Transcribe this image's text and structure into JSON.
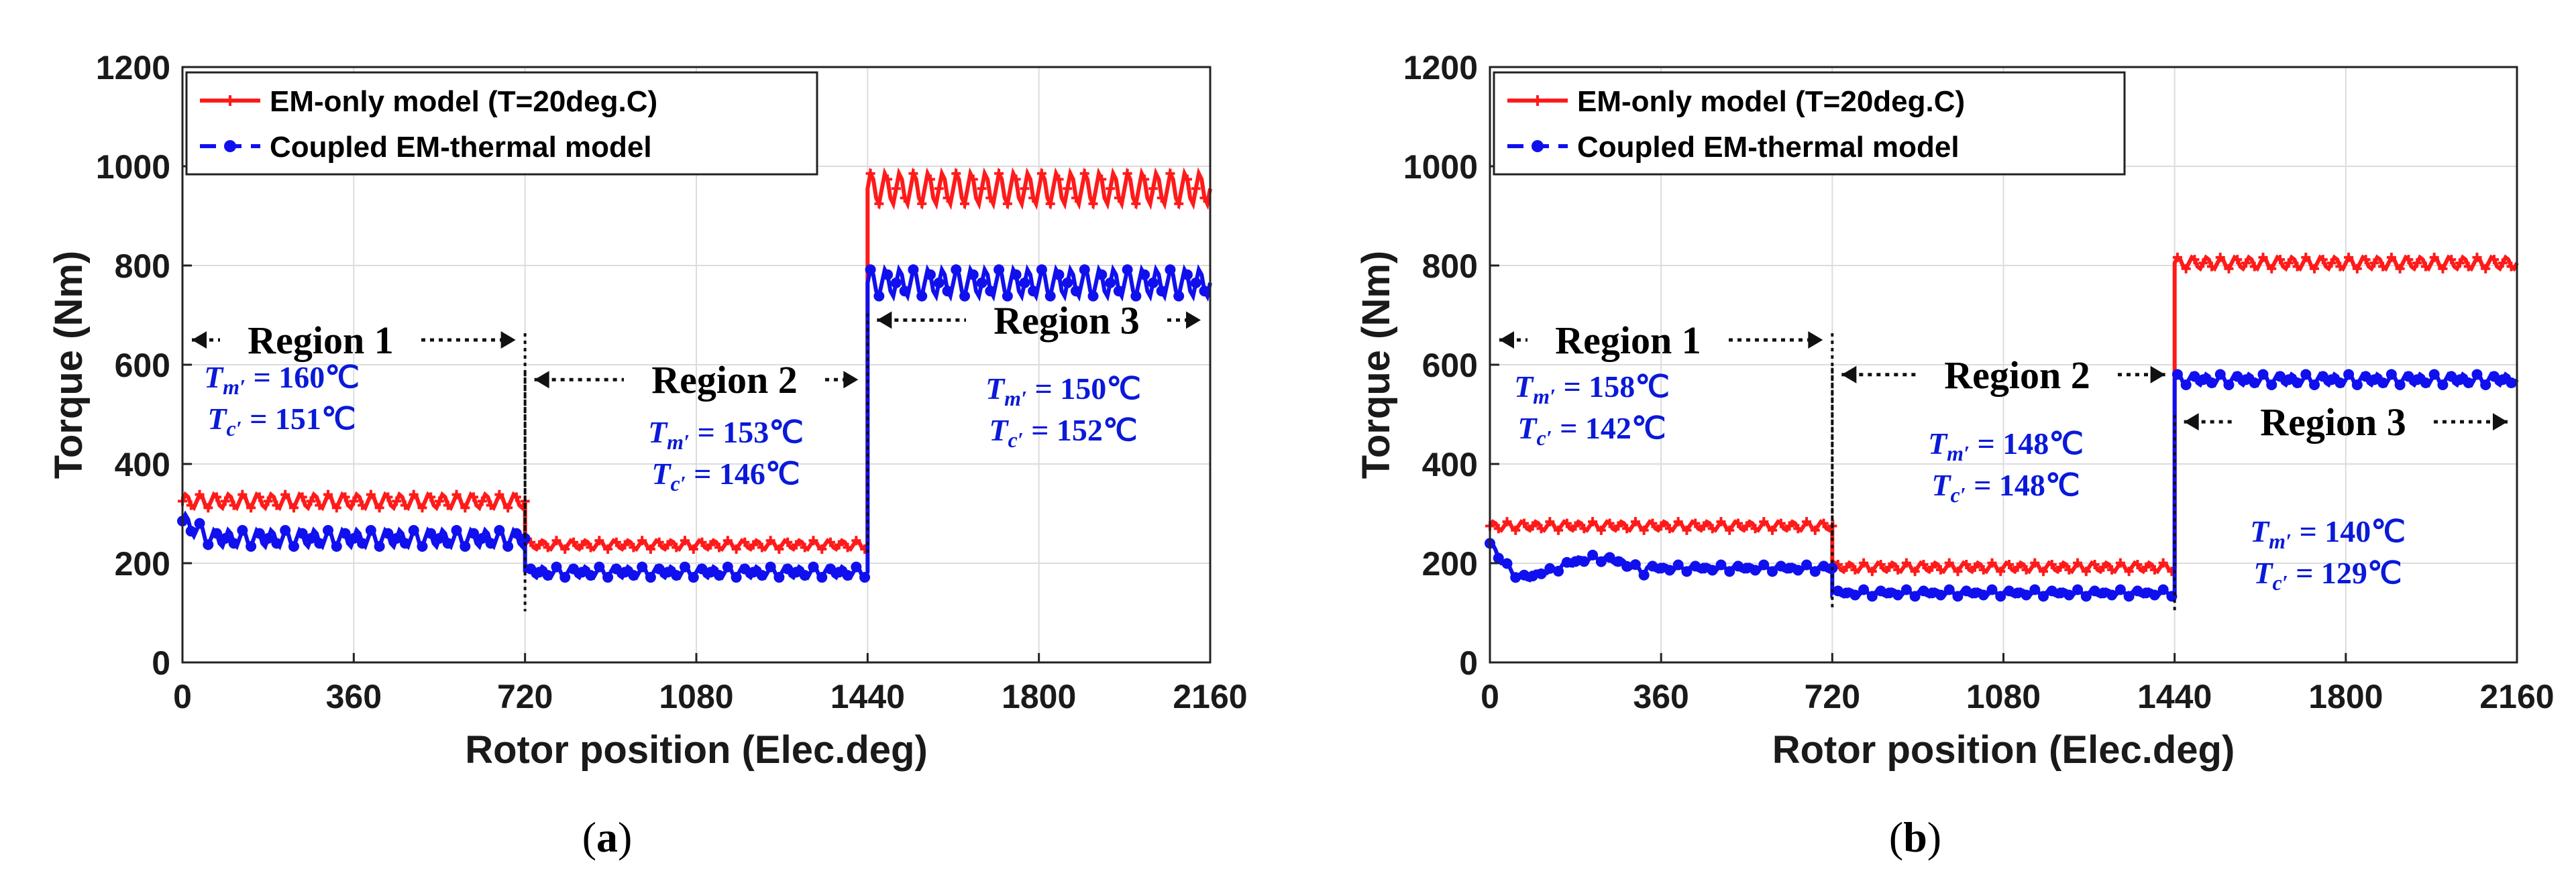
{
  "chart_data": [
    {
      "panel": "a",
      "caption_letter": "a",
      "type": "line",
      "xlabel": "Rotor position (Elec.deg)",
      "ylabel": "Torque (Nm)",
      "xlim": [
        0,
        2160
      ],
      "ylim": [
        0,
        1200
      ],
      "xticks": [
        0,
        360,
        720,
        1080,
        1440,
        1800,
        2160
      ],
      "yticks": [
        0,
        200,
        400,
        600,
        800,
        1000,
        1200
      ],
      "grid": true,
      "legend_position": "top-left",
      "series": [
        {
          "name": "EM-only model (T=20deg.C)",
          "color": "#ff1a1a",
          "marker": "plus",
          "segments": [
            [
              0,
              720,
              325
            ],
            [
              720,
              1440,
              237
            ],
            [
              1440,
              2160,
              955
            ]
          ],
          "ripple": [
            14,
            9,
            32
          ]
        },
        {
          "name": "Coupled EM-thermal model",
          "color": "#1010ee",
          "marker": "dot",
          "segments": [
            [
              0,
              720,
              250
            ],
            [
              720,
              1440,
              182
            ],
            [
              1440,
              2160,
              765
            ]
          ],
          "ripple": [
            17,
            11,
            28
          ]
        }
      ],
      "regions": [
        {
          "label": "Region 1",
          "x_start": 0,
          "x_end": 720,
          "arrow_y": 650,
          "Tm_value": "160",
          "Tc_value": "151"
        },
        {
          "label": "Region 2",
          "x_start": 720,
          "x_end": 1440,
          "arrow_y": 570,
          "Tm_value": "153",
          "Tc_value": "146"
        },
        {
          "label": "Region 3",
          "x_start": 1440,
          "x_end": 2160,
          "arrow_y": 690,
          "Tm_value": "150",
          "Tc_value": "152"
        }
      ]
    },
    {
      "panel": "b",
      "caption_letter": "b",
      "type": "line",
      "xlabel": "Rotor position (Elec.deg)",
      "ylabel": "Torque (Nm)",
      "xlim": [
        0,
        2160
      ],
      "ylim": [
        0,
        1200
      ],
      "xticks": [
        0,
        360,
        720,
        1080,
        1440,
        1800,
        2160
      ],
      "yticks": [
        0,
        200,
        400,
        600,
        800,
        1000,
        1200
      ],
      "grid": true,
      "legend_position": "top-left",
      "series": [
        {
          "name": "EM-only model (T=20deg.C)",
          "color": "#ff1a1a",
          "marker": "plus",
          "segments": [
            [
              0,
              720,
              275
            ],
            [
              720,
              1440,
              192
            ],
            [
              1440,
              2160,
              805
            ]
          ],
          "ripple": [
            9,
            9,
            12
          ]
        },
        {
          "name": "Coupled EM-thermal model",
          "color": "#1010ee",
          "marker": "dot",
          "segments": [
            [
              0,
              720,
              190
            ],
            [
              720,
              1440,
              140
            ],
            [
              1440,
              2160,
              570
            ]
          ],
          "ripple": [
            7,
            7,
            11
          ]
        }
      ],
      "regions": [
        {
          "label": "Region 1",
          "x_start": 0,
          "x_end": 720,
          "arrow_y": 650,
          "Tm_value": "158",
          "Tc_value": "142"
        },
        {
          "label": "Region 2",
          "x_start": 720,
          "x_end": 1440,
          "arrow_y": 580,
          "Tm_value": "148",
          "Tc_value": "148"
        },
        {
          "label": "Region 3",
          "x_start": 1440,
          "x_end": 2160,
          "arrow_y": 485,
          "Tm_value": "140",
          "Tc_value": "129"
        }
      ]
    }
  ],
  "annotation_labels": {
    "Tm": "T",
    "Tm_sub": "m′",
    "Tc": "T",
    "Tc_sub": "c′",
    "unit": "℃"
  },
  "captions": {
    "left": "a",
    "right": "b"
  }
}
